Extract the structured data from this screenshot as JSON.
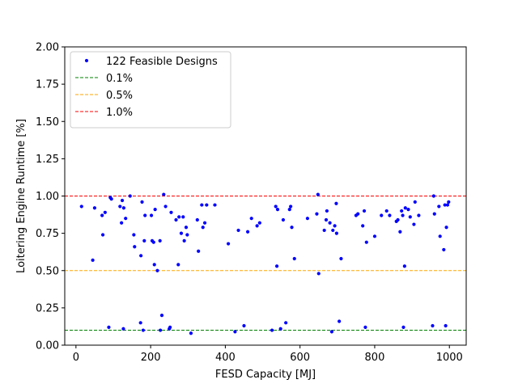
{
  "chart_data": {
    "type": "scatter",
    "title": "",
    "xlabel": "FESD Capacity [MJ]",
    "ylabel": "Loitering Engine Runtime [%]",
    "xlim": [
      -30,
      1045
    ],
    "ylim": [
      0,
      2.0
    ],
    "xticks": [
      0,
      200,
      400,
      600,
      800,
      1000
    ],
    "xtick_labels": [
      "0",
      "200",
      "400",
      "600",
      "800",
      "1000"
    ],
    "yticks": [
      0,
      0.25,
      0.5,
      0.75,
      1.0,
      1.25,
      1.5,
      1.75,
      2.0
    ],
    "ytick_labels": [
      "0.00",
      "0.25",
      "0.50",
      "0.75",
      "1.00",
      "1.25",
      "1.50",
      "1.75",
      "2.00"
    ],
    "grid": false,
    "legend_position": "upper-left",
    "series": [
      {
        "name": "122 Feasible Designs",
        "kind": "points",
        "color": "#0000ff",
        "points": [
          [
            15,
            0.93
          ],
          [
            45,
            0.57
          ],
          [
            50,
            0.92
          ],
          [
            70,
            0.87
          ],
          [
            72,
            0.74
          ],
          [
            78,
            0.89
          ],
          [
            88,
            0.12
          ],
          [
            92,
            0.99
          ],
          [
            95,
            0.98
          ],
          [
            118,
            0.93
          ],
          [
            122,
            0.82
          ],
          [
            124,
            0.97
          ],
          [
            127,
            0.11
          ],
          [
            128,
            0.92
          ],
          [
            133,
            0.85
          ],
          [
            145,
            1.0
          ],
          [
            155,
            0.74
          ],
          [
            157,
            0.66
          ],
          [
            173,
            0.15
          ],
          [
            174,
            0.6
          ],
          [
            177,
            0.96
          ],
          [
            180,
            0.1
          ],
          [
            183,
            0.7
          ],
          [
            185,
            0.87
          ],
          [
            202,
            0.87
          ],
          [
            204,
            0.7
          ],
          [
            208,
            0.69
          ],
          [
            210,
            0.54
          ],
          [
            212,
            0.91
          ],
          [
            218,
            0.5
          ],
          [
            225,
            0.7
          ],
          [
            226,
            0.1
          ],
          [
            230,
            0.2
          ],
          [
            235,
            1.01
          ],
          [
            240,
            0.93
          ],
          [
            250,
            0.11
          ],
          [
            252,
            0.12
          ],
          [
            255,
            0.89
          ],
          [
            268,
            0.84
          ],
          [
            274,
            0.54
          ],
          [
            276,
            0.86
          ],
          [
            282,
            0.75
          ],
          [
            287,
            0.86
          ],
          [
            290,
            0.7
          ],
          [
            295,
            0.79
          ],
          [
            298,
            0.74
          ],
          [
            308,
            0.08
          ],
          [
            325,
            0.84
          ],
          [
            328,
            0.63
          ],
          [
            337,
            0.94
          ],
          [
            340,
            0.79
          ],
          [
            345,
            0.82
          ],
          [
            350,
            0.94
          ],
          [
            372,
            0.94
          ],
          [
            408,
            0.68
          ],
          [
            426,
            0.09
          ],
          [
            435,
            0.77
          ],
          [
            450,
            0.13
          ],
          [
            460,
            0.76
          ],
          [
            470,
            0.85
          ],
          [
            485,
            0.8
          ],
          [
            492,
            0.82
          ],
          [
            525,
            0.1
          ],
          [
            535,
            0.93
          ],
          [
            538,
            0.53
          ],
          [
            540,
            0.91
          ],
          [
            548,
            0.11
          ],
          [
            555,
            0.84
          ],
          [
            562,
            0.15
          ],
          [
            572,
            0.91
          ],
          [
            575,
            0.93
          ],
          [
            578,
            0.79
          ],
          [
            585,
            0.58
          ],
          [
            620,
            0.85
          ],
          [
            645,
            0.88
          ],
          [
            648,
            1.01
          ],
          [
            650,
            0.48
          ],
          [
            665,
            0.77
          ],
          [
            670,
            0.84
          ],
          [
            672,
            0.9
          ],
          [
            680,
            0.82
          ],
          [
            685,
            0.09
          ],
          [
            688,
            0.77
          ],
          [
            693,
            0.8
          ],
          [
            697,
            0.95
          ],
          [
            698,
            0.75
          ],
          [
            705,
            0.16
          ],
          [
            710,
            0.58
          ],
          [
            750,
            0.87
          ],
          [
            755,
            0.88
          ],
          [
            768,
            0.8
          ],
          [
            772,
            0.9
          ],
          [
            775,
            0.12
          ],
          [
            778,
            0.69
          ],
          [
            800,
            0.73
          ],
          [
            818,
            0.87
          ],
          [
            832,
            0.9
          ],
          [
            840,
            0.87
          ],
          [
            858,
            0.83
          ],
          [
            862,
            0.84
          ],
          [
            868,
            0.76
          ],
          [
            872,
            0.9
          ],
          [
            875,
            0.87
          ],
          [
            877,
            0.12
          ],
          [
            880,
            0.53
          ],
          [
            882,
            0.92
          ],
          [
            890,
            0.91
          ],
          [
            895,
            0.86
          ],
          [
            905,
            0.81
          ],
          [
            908,
            0.96
          ],
          [
            918,
            0.87
          ],
          [
            955,
            0.13
          ],
          [
            958,
            1.0
          ],
          [
            960,
            0.88
          ],
          [
            972,
            0.93
          ],
          [
            975,
            0.73
          ],
          [
            985,
            0.64
          ],
          [
            988,
            0.94
          ],
          [
            990,
            0.13
          ],
          [
            992,
            0.79
          ],
          [
            995,
            0.94
          ],
          [
            998,
            0.96
          ]
        ]
      },
      {
        "name": "0.1%",
        "kind": "hline",
        "y": 0.1,
        "color": "#008000"
      },
      {
        "name": "0.5%",
        "kind": "hline",
        "y": 0.5,
        "color": "#ffa500"
      },
      {
        "name": "1.0%",
        "kind": "hline",
        "y": 1.0,
        "color": "#ff0000"
      }
    ]
  }
}
